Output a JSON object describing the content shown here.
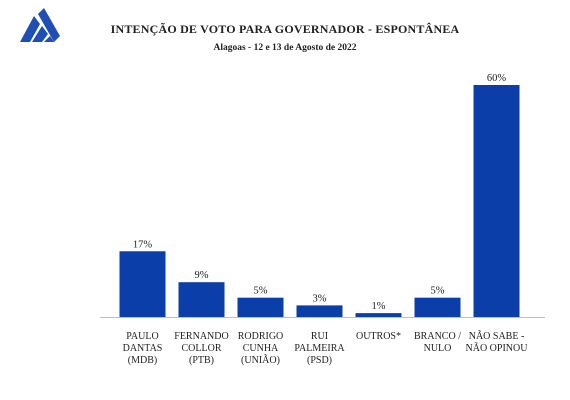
{
  "header": {
    "title": "INTENÇÃO DE VOTO PARA GOVERNADOR - ESPONTÂNEA",
    "subtitle": "Alagoas - 12 e 13 de Agosto de 2022"
  },
  "colors": {
    "bar": "#0b3ea8",
    "axis": "#bfbfbf",
    "text": "#222222",
    "logo": "#1f4fb5"
  },
  "chart_data": {
    "type": "bar",
    "title": "INTENÇÃO DE VOTO PARA GOVERNADOR - ESPONTÂNEA",
    "subtitle": "Alagoas - 12 e 13 de Agosto de 2022",
    "categories": [
      [
        "PAULO",
        "DANTAS",
        "(MDB)"
      ],
      [
        "FERNANDO",
        "COLLOR",
        "(PTB)"
      ],
      [
        "RODRIGO",
        "CUNHA",
        "(UNIÃO)"
      ],
      [
        "RUI",
        "PALMEIRA",
        "(PSD)"
      ],
      [
        "OUTROS*"
      ],
      [
        "BRANCO /",
        "NULO"
      ],
      [
        "NÃO SABE  -",
        "NÃO OPINOU"
      ]
    ],
    "values": [
      17,
      9,
      5,
      3,
      1,
      5,
      60
    ],
    "data_labels": [
      "17%",
      "9%",
      "5%",
      "3%",
      "1%",
      "5%",
      "60%"
    ],
    "ylim": [
      0,
      60
    ],
    "grid": false,
    "legend": "none"
  }
}
